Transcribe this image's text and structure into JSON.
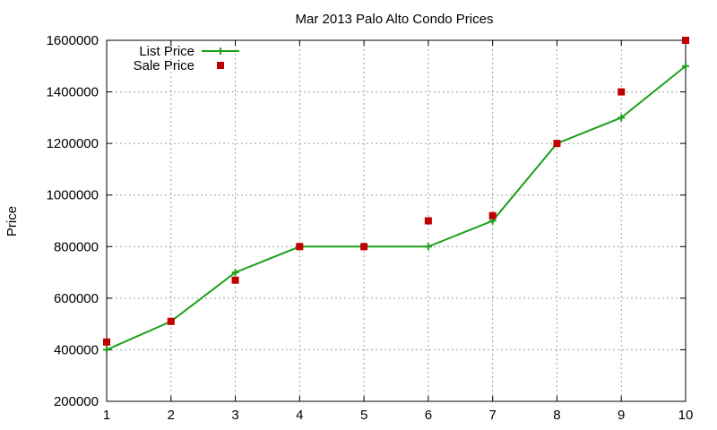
{
  "chart_data": {
    "type": "line",
    "title": "Mar 2013 Palo Alto Condo Prices",
    "xlabel": "",
    "ylabel": "Price",
    "xlim": [
      1,
      10
    ],
    "ylim": [
      200000,
      1600000
    ],
    "x_ticks": [
      1,
      2,
      3,
      4,
      5,
      6,
      7,
      8,
      9,
      10
    ],
    "y_ticks": [
      200000,
      400000,
      600000,
      800000,
      1000000,
      1200000,
      1400000,
      1600000
    ],
    "grid": true,
    "legend_position": "top-left",
    "series": [
      {
        "name": "List Price",
        "style": "line-with-plus-markers",
        "color": "#1aa01a",
        "x": [
          1,
          2,
          3,
          4,
          5,
          6,
          7,
          8,
          9,
          10
        ],
        "values": [
          400000,
          510000,
          700000,
          800000,
          800000,
          800000,
          900000,
          1200000,
          1300000,
          1500000
        ]
      },
      {
        "name": "Sale Price",
        "style": "square-markers",
        "color": "#c00000",
        "x": [
          1,
          2,
          3,
          4,
          5,
          6,
          7,
          8,
          9,
          10
        ],
        "values": [
          430000,
          510000,
          670000,
          800000,
          800000,
          900000,
          920000,
          1200000,
          1400000,
          1600000
        ]
      }
    ]
  }
}
